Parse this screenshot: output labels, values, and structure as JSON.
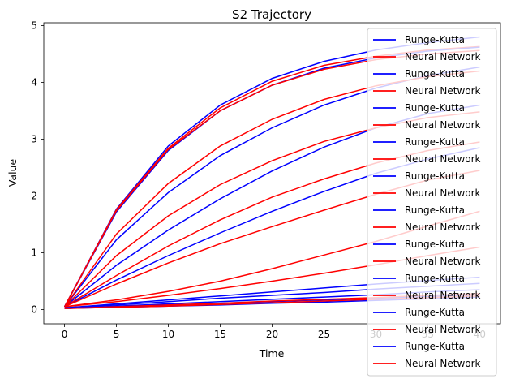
{
  "chart_data": {
    "type": "line",
    "title": "S2 Trajectory",
    "xlabel": "Time",
    "ylabel": "Value",
    "xlim": [
      -2,
      42
    ],
    "ylim": [
      -0.25,
      5.05
    ],
    "xticks": [
      0,
      5,
      10,
      15,
      20,
      25,
      30,
      35,
      40
    ],
    "yticks": [
      0,
      1,
      2,
      3,
      4,
      5
    ],
    "grid": false,
    "legend_position": "right",
    "colors": {
      "Runge-Kutta": "#0000ff",
      "Neural Network": "#ff0000"
    },
    "series": [
      {
        "name": "Runge-Kutta",
        "color": "#0000ff",
        "x": [
          0,
          5,
          10,
          15,
          20,
          25,
          30,
          35,
          40
        ],
        "y": [
          0.05,
          1.77,
          2.88,
          3.6,
          4.07,
          4.37,
          4.57,
          4.7,
          4.8
        ]
      },
      {
        "name": "Neural Network",
        "color": "#ff0000",
        "x": [
          0,
          5,
          10,
          15,
          20,
          25,
          30,
          35,
          40
        ],
        "y": [
          0.05,
          1.76,
          2.84,
          3.55,
          4.02,
          4.3,
          4.46,
          4.57,
          4.63
        ]
      },
      {
        "name": "Runge-Kutta",
        "color": "#0000ff",
        "x": [
          0,
          5,
          10,
          15,
          20,
          25,
          30,
          35,
          40
        ],
        "y": [
          0.05,
          1.72,
          2.8,
          3.5,
          3.95,
          4.25,
          4.43,
          4.55,
          4.62
        ]
      },
      {
        "name": "Neural Network",
        "color": "#ff0000",
        "x": [
          0,
          5,
          10,
          15,
          20,
          25,
          30,
          35,
          40
        ],
        "y": [
          0.05,
          1.74,
          2.82,
          3.5,
          3.95,
          4.23,
          4.4,
          4.5,
          4.56
        ]
      },
      {
        "name": "Runge-Kutta",
        "color": "#0000ff",
        "x": [
          0,
          5,
          10,
          15,
          20,
          25,
          30,
          35,
          40
        ],
        "y": [
          0.05,
          1.23,
          2.06,
          2.71,
          3.2,
          3.6,
          3.9,
          4.12,
          4.27
        ]
      },
      {
        "name": "Neural Network",
        "color": "#ff0000",
        "x": [
          0,
          5,
          10,
          15,
          20,
          25,
          30,
          35,
          40
        ],
        "y": [
          0.05,
          1.33,
          2.22,
          2.88,
          3.35,
          3.7,
          3.94,
          4.1,
          4.2
        ]
      },
      {
        "name": "Runge-Kutta",
        "color": "#0000ff",
        "x": [
          0,
          5,
          10,
          15,
          20,
          25,
          30,
          35,
          40
        ],
        "y": [
          0.05,
          0.78,
          1.4,
          1.95,
          2.44,
          2.86,
          3.2,
          3.45,
          3.6
        ]
      },
      {
        "name": "Neural Network",
        "color": "#ff0000",
        "x": [
          0,
          5,
          10,
          15,
          20,
          25,
          30,
          35,
          40
        ],
        "y": [
          0.05,
          0.95,
          1.65,
          2.2,
          2.62,
          2.96,
          3.2,
          3.38,
          3.48
        ]
      },
      {
        "name": "Runge-Kutta",
        "color": "#0000ff",
        "x": [
          0,
          5,
          10,
          15,
          20,
          25,
          30,
          35,
          40
        ],
        "y": [
          0.05,
          0.52,
          0.95,
          1.35,
          1.73,
          2.08,
          2.4,
          2.65,
          2.85
        ]
      },
      {
        "name": "Neural Network",
        "color": "#ff0000",
        "x": [
          0,
          5,
          10,
          15,
          20,
          25,
          30,
          35,
          40
        ],
        "y": [
          0.05,
          0.6,
          1.12,
          1.58,
          1.98,
          2.3,
          2.58,
          2.8,
          2.95
        ]
      },
      {
        "name": "Runge-Kutta",
        "color": "#0000ff",
        "x": [
          0,
          5,
          10,
          15,
          20,
          25,
          30,
          35,
          40
        ],
        "y": [
          0.03,
          0.1,
          0.17,
          0.24,
          0.31,
          0.38,
          0.45,
          0.51,
          0.57
        ]
      },
      {
        "name": "Neural Network",
        "color": "#ff0000",
        "x": [
          0,
          5,
          10,
          15,
          20,
          25,
          30,
          35,
          40
        ],
        "y": [
          0.05,
          0.45,
          0.82,
          1.16,
          1.46,
          1.75,
          2.03,
          2.28,
          2.45
        ]
      },
      {
        "name": "Runge-Kutta",
        "color": "#0000ff",
        "x": [
          0,
          5,
          10,
          15,
          20,
          25,
          30,
          35,
          40
        ],
        "y": [
          0.03,
          0.08,
          0.14,
          0.2,
          0.25,
          0.3,
          0.36,
          0.41,
          0.46
        ]
      },
      {
        "name": "Neural Network",
        "color": "#ff0000",
        "x": [
          0,
          5,
          10,
          15,
          20,
          25,
          30,
          35,
          40
        ],
        "y": [
          0.05,
          0.17,
          0.32,
          0.5,
          0.72,
          0.96,
          1.2,
          1.47,
          1.73
        ]
      },
      {
        "name": "Runge-Kutta",
        "color": "#0000ff",
        "x": [
          0,
          5,
          10,
          15,
          20,
          25,
          30,
          35,
          40
        ],
        "y": [
          0.02,
          0.06,
          0.1,
          0.14,
          0.18,
          0.22,
          0.26,
          0.31,
          0.35
        ]
      },
      {
        "name": "Neural Network",
        "color": "#ff0000",
        "x": [
          0,
          5,
          10,
          15,
          20,
          25,
          30,
          35,
          40
        ],
        "y": [
          0.05,
          0.14,
          0.25,
          0.37,
          0.5,
          0.64,
          0.79,
          0.95,
          1.1
        ]
      },
      {
        "name": "Runge-Kutta",
        "color": "#0000ff",
        "x": [
          0,
          5,
          10,
          15,
          20,
          25,
          30,
          35,
          40
        ],
        "y": [
          0.02,
          0.05,
          0.08,
          0.11,
          0.14,
          0.17,
          0.2,
          0.23,
          0.26
        ]
      },
      {
        "name": "Neural Network",
        "color": "#ff0000",
        "x": [
          0,
          5,
          10,
          15,
          20,
          25,
          30,
          35,
          40
        ],
        "y": [
          0.02,
          0.05,
          0.08,
          0.11,
          0.15,
          0.18,
          0.21,
          0.25,
          0.28
        ]
      },
      {
        "name": "Runge-Kutta",
        "color": "#0000ff",
        "x": [
          0,
          5,
          10,
          15,
          20,
          25,
          30,
          35,
          40
        ],
        "y": [
          0.02,
          0.04,
          0.06,
          0.08,
          0.11,
          0.13,
          0.16,
          0.19,
          0.22
        ]
      },
      {
        "name": "Neural Network",
        "color": "#ff0000",
        "x": [
          0,
          5,
          10,
          15,
          20,
          25,
          30,
          35,
          40
        ],
        "y": [
          0.02,
          0.04,
          0.06,
          0.09,
          0.12,
          0.15,
          0.18,
          0.21,
          0.24
        ]
      }
    ]
  }
}
